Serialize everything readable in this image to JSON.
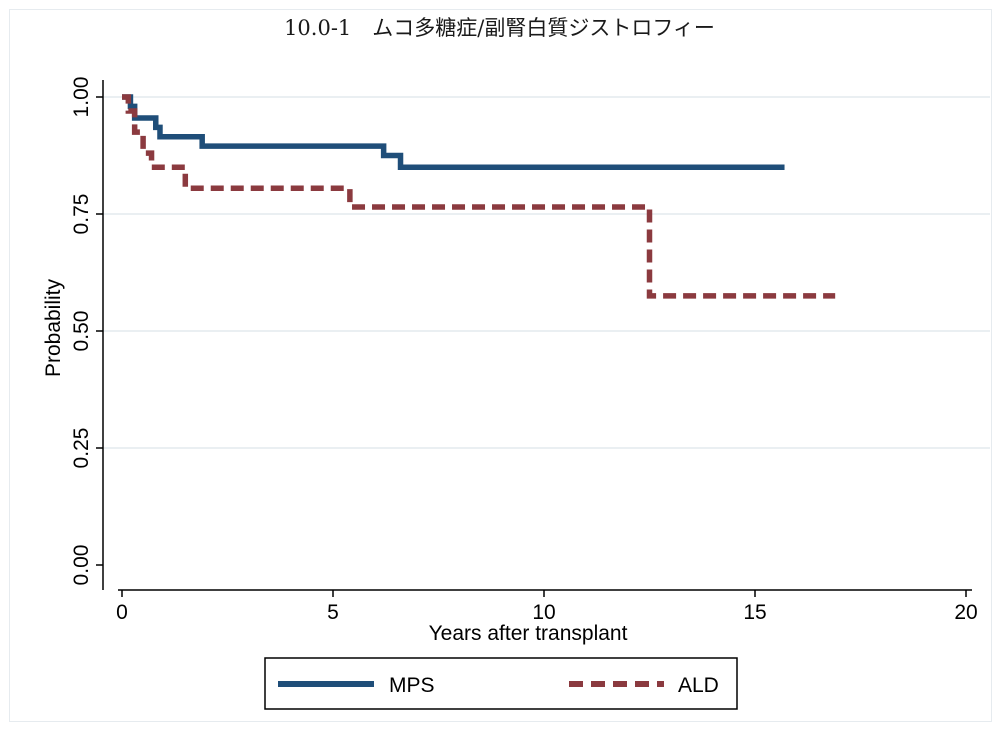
{
  "chart_data": {
    "type": "line",
    "title": "10.0-1　ムコ多糖症/副腎白質ジストロフィー",
    "xlabel": "Years after transplant",
    "ylabel": "Probability",
    "xlim": [
      0,
      20
    ],
    "ylim": [
      0,
      1
    ],
    "x_ticks": [
      "0",
      "5",
      "10",
      "15",
      "20"
    ],
    "y_ticks": [
      "0.00",
      "0.25",
      "0.50",
      "0.75",
      "1.00"
    ],
    "grid": "horizontal",
    "legend_position": "bottom",
    "series": [
      {
        "name": "MPS",
        "color": "#1f4e79",
        "style": "solid",
        "step": "post",
        "x": [
          0,
          0.2,
          0.3,
          0.8,
          0.9,
          1.9,
          6.2,
          6.6,
          15.7
        ],
        "y": [
          1.0,
          0.98,
          0.955,
          0.935,
          0.915,
          0.895,
          0.875,
          0.85,
          0.85
        ]
      },
      {
        "name": "ALD",
        "color": "#8b3a3f",
        "style": "dashed",
        "step": "post",
        "x": [
          0,
          0.15,
          0.3,
          0.5,
          0.7,
          1.5,
          5.4,
          12.5,
          16.9
        ],
        "y": [
          1.0,
          0.97,
          0.925,
          0.88,
          0.85,
          0.805,
          0.765,
          0.575,
          0.575
        ]
      }
    ]
  }
}
